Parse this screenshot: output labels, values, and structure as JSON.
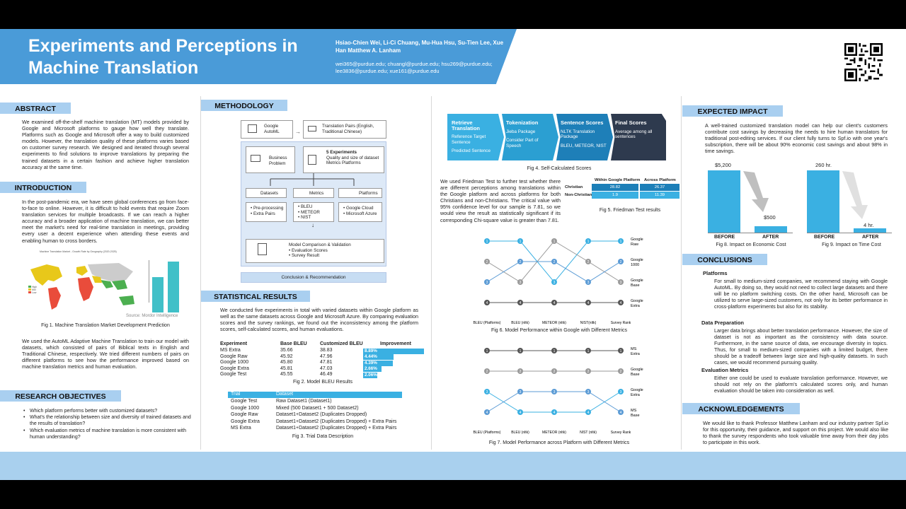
{
  "header": {
    "title": "Experiments and Perceptions in Machine Translation",
    "authors": "Hsiao-Chien Wei, Li-Ci Chuang, Mu-Hua Hsu, Su-Tien Lee, Xue Han Matthew A. Lanham",
    "emails": "wei365@purdue.edu; chuangl@purdue.edu; hsu269@purdue.edu; lee3836@purdue.edu; xue161@purdue.edu"
  },
  "abstract": {
    "heading": "ABSTRACT",
    "text": "We examined off-the-shelf machine translation (MT) models provided by Google and Microsoft platforms to gauge how well they translate. Platforms such as Google and Microsoft offer a way to build customized models. However, the translation quality of these platforms varies based on customer survey research. We designed and iterated through several experiments to find solutions to improve translations by preparing the trained datasets in a certain fashion and achieve higher translation accuracy at the same time."
  },
  "introduction": {
    "heading": "INTRODUCTION",
    "text1": "In the post-pandemic era, we have seen global conferences go from face-to-face to online. However, it is difficult to hold events that require Zoom translation services for multiple broadcasts. If we can reach a higher accuracy and a broader application of machine translation, we can better meet the market's need for real-time translation in meetings, providing every user a decent experience when attending these events and enabling human to cross borders.",
    "map_title": "Machine Translation Market - Growth Rate by Geography (2020-2025)",
    "map_source": "Source: Mordor Intelligence",
    "fig1": "Fig 1. Machine Translation Market Development Prediction",
    "text2": "We used the AutoML Adaptive Machine Translation to train our model with datasets, which consisted of pairs of Biblical texts in English and Traditional Chinese, respectively. We tried different numbers of pairs on different platforms to see how the performance improved based on machine translation metrics and human evaluation.",
    "legend": [
      "High",
      "Mid",
      "Low"
    ]
  },
  "objectives": {
    "heading": "RESEARCH OBJECTIVES",
    "items": [
      "Which platform performs better with customized datasets?",
      "What's the relationship between size and diversity of trained datasets and the results of translation?",
      "Which evaluation metrics of machine translation is more consistent with human understanding?"
    ]
  },
  "methodology": {
    "heading": "METHODOLOGY",
    "google_automl": "Google AutoML",
    "pairs": "Translation Pairs (English, Traditional Chinese)",
    "business": "Business Problem",
    "exp_title": "5 Experiments",
    "exp_sub": "Quality and size of dataset Metrics Platforms",
    "datasets": "Datasets",
    "metrics": "Metrics",
    "platforms": "Platforms",
    "ds_items": [
      "Pre-processing",
      "Extra Pairs"
    ],
    "mt_items": [
      "BLEU",
      "METEOR",
      "NIST"
    ],
    "pf_items": [
      "Google Cloud",
      "Microsoft Azure"
    ],
    "comparison": "Model Comparison & Validation",
    "comp_items": [
      "Evaluation Scores",
      "Survey Result"
    ],
    "conclusion": "Conclusion & Recommendation"
  },
  "statistical": {
    "heading": "STATISTICAL RESULTS",
    "text": "We conducted five experiments in total with varied datasets within Google platform as well as the same datasets across Google and Microsoft Azure. By comparing evaluation scores and the survey rankings, we found out the inconsistency among the platform scores, self-calculated scores, and human evaluations.",
    "bleu_headers": [
      "Experiment",
      "Base BLEU",
      "Customized BLEU",
      "Improvement"
    ],
    "bleu_rows": [
      [
        "MS Extra",
        "35.66",
        "38.83",
        "8.89%"
      ],
      [
        "Google Raw",
        "45.92",
        "47.96",
        "4.44%"
      ],
      [
        "Google 1000",
        "45.80",
        "47.81",
        "4.39%"
      ],
      [
        "Google Extra",
        "45.81",
        "47.03",
        "2.66%"
      ],
      [
        "Google Test",
        "45.55",
        "46.49",
        "2.06%"
      ]
    ],
    "fig2": "Fig 2. Model BLEU Results",
    "trial_headers": [
      "Trial",
      "Dataset"
    ],
    "trial_rows": [
      [
        "Google Test",
        "Raw Dataset1 (Dataset1)"
      ],
      [
        "Google 1000",
        "Mixed (500 Dataset1 + 500 Dataset2)"
      ],
      [
        "Google Raw",
        "Dataset1+Dataset2 (Duplicates Dropped)"
      ],
      [
        "Google Extra",
        "Dataset1+Dataset2 (Duplicates Dropped) + Extra Pairs"
      ],
      [
        "MS Extra",
        "Dataset1+Dataset2 (Duplicates Dropped) + Extra Pairs"
      ]
    ],
    "fig3": "Fig 3. Trial Data Description"
  },
  "selfcalc": {
    "steps": [
      {
        "title": "Retrieve Translation",
        "lines": [
          "Reference Target Sentence",
          "Predicted Sentence"
        ]
      },
      {
        "title": "Tokenization",
        "lines": [
          "Jieba Package",
          "Consider Part of Speech"
        ]
      },
      {
        "title": "Sentence Scores",
        "lines": [
          "NLTK Translation Package",
          "BLEU, METEOR, NIST"
        ]
      },
      {
        "title": "Final Scores",
        "lines": [
          "Average among all sentences"
        ]
      }
    ],
    "fig4": "Fig 4. Self-Calculated Scores"
  },
  "friedman": {
    "text": "We used Friedman Test to further test whether there are different perceptions among translations within the Google platform and across platforms for both Christians and non-Christians. The critical value with 95% confidence level for our sample is 7.81, so we would view the result as statistically significant if its corresponding Chi-square value is greater than 7.81.",
    "headers": [
      "Within Google Platform",
      "Across Platform"
    ],
    "rows": [
      [
        "Christian",
        "28.82",
        "26.37"
      ],
      [
        "Non-Christian",
        "1.9",
        "11.39"
      ]
    ],
    "fig5": "Fig 5. Friedman Test results"
  },
  "fig6": {
    "caption": "Fig 6. Model Performance within Google with Different Metrics",
    "xlabels": [
      "BLEU (Platforms)",
      "BLEU (nltk)",
      "METEOR (nltk)",
      "NIST(nltk)",
      "Survey Rank"
    ],
    "labels": [
      "Google Raw",
      "Google 1000",
      "Google Base",
      "Google Extra"
    ]
  },
  "fig7": {
    "caption": "Fig 7. Model Performance across Platform with Different Metrics",
    "xlabels": [
      "BLEU (Platforms)",
      "BLEU (nltk)",
      "METEOR (nltk)",
      "NIST (nltk)",
      "Survey Rank"
    ],
    "labels": [
      "MS Extra",
      "Google Base",
      "Google Extra",
      "MS Base"
    ]
  },
  "impact": {
    "heading": "EXPECTED IMPACT",
    "text": "A well-trained customized translation model can help our client's customers contribute cost savings by decreasing the needs to hire human translators for traditional post-editing services. If our client fully turns to Spf.io with one year's subscription, there will be about 90% economic cost savings and about 98% in time savings.",
    "econ_before": "$5,200",
    "econ_after": "$500",
    "time_before": "260 hr.",
    "time_after": "4 hr.",
    "before": "BEFORE",
    "after": "AFTER",
    "fig8": "Fig 8. Impact on Economic Cost",
    "fig9": "Fig 9. Impact on Time Cost",
    "econ_values": [
      5200,
      500
    ],
    "time_values": [
      260,
      4
    ]
  },
  "conclusions": {
    "heading": "CONCLUSIONS",
    "p_title": "Platforms",
    "p_text": "For small to medium-sized companies, we recommend staying with Google AutoML. By doing so, they would not need to collect large datasets and there will be no platform switching costs. On the other hand, Microsoft can be utilized to serve large-sized customers, not only for its better performance in cross-platform experiments but also for its stability.",
    "d_title": "Data Preparation",
    "d_text": "Larger data brings about better translation performance. However, the size of dataset is not as important as the consistency with data source. Furthermore, in the same source of data, we encourage diversity in topics. Thus, for small to medium-sized companies with a limited budget, there should be a tradeoff between large size and high-quality datasets. In such cases, we would recommend pursuing quality.",
    "e_title": "Evaluation Metrics",
    "e_text": "Either one could be used to evaluate translation performance. However, we should not rely on the platform's calculated scores only, and human evaluation should be taken into consideration as well."
  },
  "ack": {
    "heading": "ACKNOWLEDGEMENTS",
    "text": "We would like to thank Professor Matthew Lanham and our industry partner Spf.io for this opportunity, their guidance, and support on this project. We would also like to thank the survey respondents who took valuable time away from their day jobs to participate in this work."
  },
  "colors": {
    "header": "#4a9bd8",
    "section": "#a9cff0",
    "accent": "#3ab0e2",
    "dark": "#2e3a4e"
  }
}
